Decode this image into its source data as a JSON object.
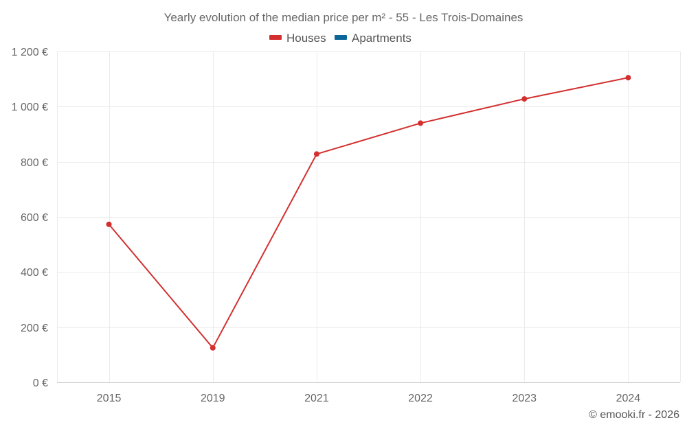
{
  "chart_data": {
    "type": "line",
    "title": "Yearly evolution of the median price per m² - 55 - Les Trois-Domaines",
    "categories": [
      "2015",
      "2019",
      "2021",
      "2022",
      "2023",
      "2024"
    ],
    "series": [
      {
        "name": "Houses",
        "color": "#d32f2f",
        "values": [
          573,
          125,
          828,
          940,
          1028,
          1105
        ]
      },
      {
        "name": "Apartments",
        "color": "#0d6699",
        "values": [
          null,
          null,
          null,
          null,
          null,
          null
        ]
      }
    ],
    "y_ticks": [
      "0 €",
      "200 €",
      "400 €",
      "600 €",
      "800 €",
      "1 000 €",
      "1 200 €"
    ],
    "ylim": [
      0,
      1200
    ],
    "y_step": 200,
    "xlabel": "",
    "ylabel": "",
    "grid": true,
    "legend_position": "top-center"
  },
  "credit": "© emooki.fr - 2026"
}
